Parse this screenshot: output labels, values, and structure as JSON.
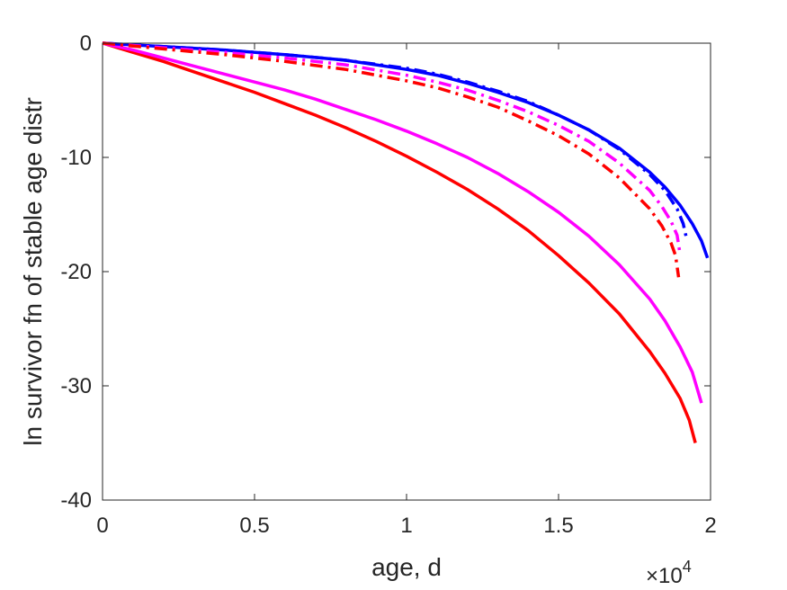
{
  "chart_data": {
    "type": "line",
    "xlabel": "age, d",
    "ylabel": "ln survivor fn of stable age distr",
    "x_exponent_label": "×10",
    "x_exponent_power": "4",
    "xlim": [
      0,
      20000
    ],
    "ylim": [
      -40,
      0
    ],
    "xticks": [
      0,
      5000,
      10000,
      15000,
      20000
    ],
    "xtick_labels": [
      "0",
      "0.5",
      "1",
      "1.5",
      "2"
    ],
    "yticks": [
      0,
      -10,
      -20,
      -30,
      -40
    ],
    "ytick_labels": [
      "0",
      "-10",
      "-20",
      "-30",
      "-40"
    ],
    "grid": false,
    "series": [
      {
        "color": "#ff0000",
        "style": "solid",
        "x": [
          0,
          1000,
          2000,
          3000,
          4000,
          5000,
          6000,
          7000,
          8000,
          9000,
          10000,
          11000,
          12000,
          13000,
          14000,
          15000,
          16000,
          17000,
          18000,
          18500,
          19000,
          19300,
          19500
        ],
        "y": [
          0,
          -0.8,
          -1.6,
          -2.5,
          -3.4,
          -4.3,
          -5.3,
          -6.3,
          -7.4,
          -8.6,
          -9.9,
          -11.3,
          -12.8,
          -14.5,
          -16.4,
          -18.6,
          -21.0,
          -23.7,
          -27.0,
          -28.9,
          -31.1,
          -33.0,
          -35.0
        ]
      },
      {
        "color": "#ff00ff",
        "style": "solid",
        "x": [
          0,
          1000,
          2000,
          3000,
          4000,
          5000,
          6000,
          7000,
          8000,
          9000,
          10000,
          11000,
          12000,
          13000,
          14000,
          15000,
          16000,
          17000,
          18000,
          18500,
          19000,
          19400,
          19700
        ],
        "y": [
          0,
          -0.6,
          -1.3,
          -2.0,
          -2.7,
          -3.4,
          -4.1,
          -4.9,
          -5.8,
          -6.7,
          -7.7,
          -8.8,
          -10.0,
          -11.4,
          -13.0,
          -14.8,
          -16.9,
          -19.4,
          -22.4,
          -24.3,
          -26.6,
          -28.8,
          -31.5
        ]
      },
      {
        "color": "#0000ff",
        "style": "solid",
        "x": [
          0,
          2000,
          4000,
          6000,
          8000,
          10000,
          11000,
          12000,
          13000,
          14000,
          15000,
          16000,
          17000,
          18000,
          18500,
          19000,
          19400,
          19700,
          19900
        ],
        "y": [
          0,
          -0.3,
          -0.6,
          -1.0,
          -1.5,
          -2.3,
          -2.8,
          -3.5,
          -4.3,
          -5.2,
          -6.3,
          -7.6,
          -9.2,
          -11.3,
          -12.6,
          -14.2,
          -15.8,
          -17.3,
          -18.8
        ]
      },
      {
        "color": "#0000ff",
        "style": "dashdot",
        "x": [
          0,
          2000,
          4000,
          6000,
          8000,
          10000,
          11000,
          12000,
          13000,
          14000,
          15000,
          16000,
          17000,
          18000,
          18500,
          18900,
          19100,
          19200
        ],
        "y": [
          0,
          -0.3,
          -0.6,
          -1.0,
          -1.5,
          -2.2,
          -2.7,
          -3.4,
          -4.2,
          -5.1,
          -6.3,
          -7.6,
          -9.3,
          -11.5,
          -12.9,
          -14.5,
          -15.8,
          -17.0
        ]
      },
      {
        "color": "#ff00ff",
        "style": "dashdot",
        "x": [
          0,
          2000,
          4000,
          6000,
          8000,
          10000,
          11000,
          12000,
          13000,
          14000,
          15000,
          16000,
          17000,
          18000,
          18400,
          18700,
          18900,
          19000
        ],
        "y": [
          0,
          -0.4,
          -0.8,
          -1.3,
          -1.9,
          -2.8,
          -3.4,
          -4.1,
          -5.0,
          -6.0,
          -7.2,
          -8.6,
          -10.5,
          -12.9,
          -14.3,
          -15.6,
          -16.8,
          -18.5
        ]
      },
      {
        "color": "#ff0000",
        "style": "dashdot",
        "x": [
          0,
          2000,
          4000,
          6000,
          8000,
          10000,
          11000,
          12000,
          13000,
          14000,
          15000,
          16000,
          17000,
          18000,
          18400,
          18700,
          18850,
          18950
        ],
        "y": [
          0,
          -0.5,
          -1.0,
          -1.6,
          -2.3,
          -3.3,
          -3.9,
          -4.7,
          -5.6,
          -6.8,
          -8.1,
          -9.7,
          -11.8,
          -14.5,
          -16.0,
          -17.5,
          -18.6,
          -20.5
        ]
      }
    ]
  }
}
